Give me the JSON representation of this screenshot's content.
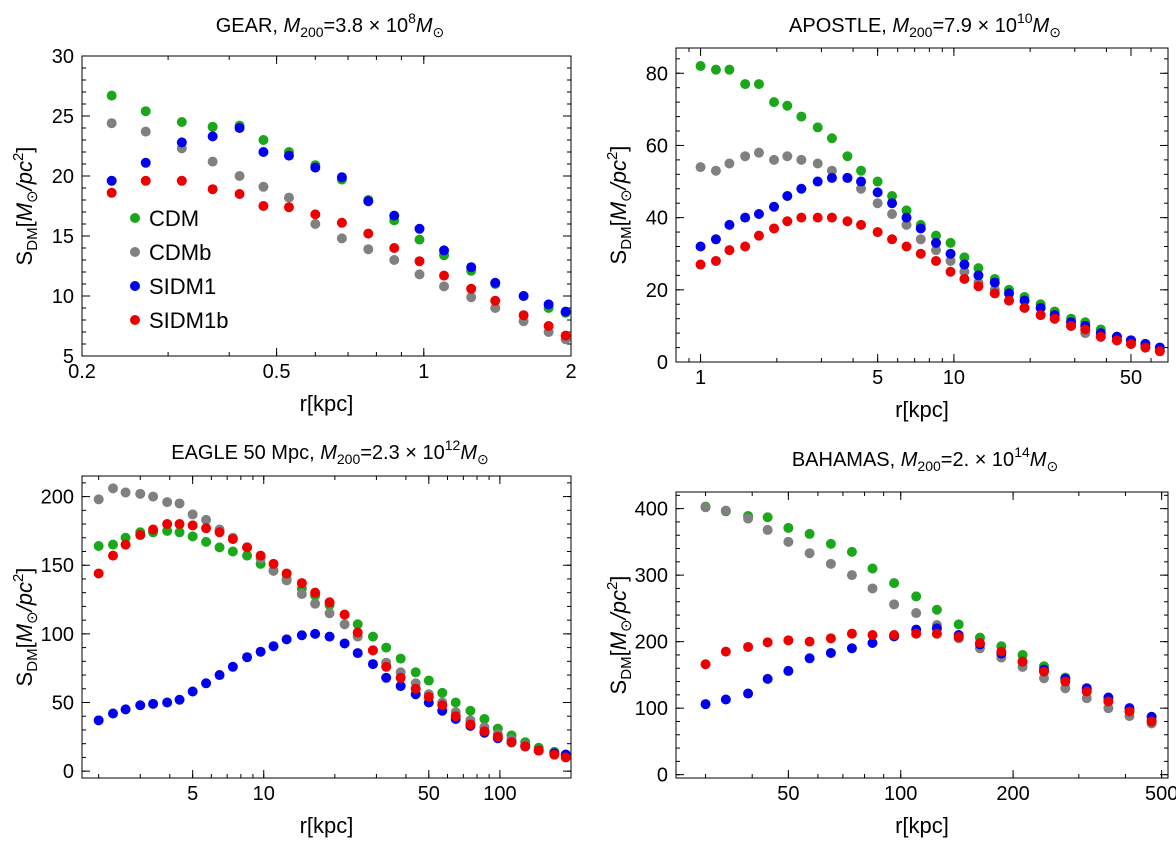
{
  "chart_data": [
    {
      "type": "scatter",
      "title": "GEAR, M200=3.8×10^8 M⊙",
      "title_parts": {
        "prefix": "GEAR, ",
        "sym": "M",
        "sub": "200",
        "mid": "=3.8 × 10",
        "sup": "8",
        "unit_sym": "M",
        "unit_sub": "⊙"
      },
      "xlabel": "r[kpc]",
      "ylabel": "S_DM[M⊙/pc²]",
      "xscale": "log",
      "xlim": [
        0.2,
        2
      ],
      "ylim": [
        5,
        30
      ],
      "xticks": [
        0.2,
        0.5,
        1,
        2
      ],
      "xtick_labels": [
        "0.2",
        "0.5",
        "1",
        "2"
      ],
      "yticks": [
        5,
        10,
        15,
        20,
        25,
        30
      ],
      "ytick_labels": [
        "5",
        "10",
        "15",
        "20",
        "25",
        "30"
      ],
      "legend": "left",
      "series": [
        {
          "name": "CDM",
          "color": "#1aa81a",
          "x": [
            0.23,
            0.27,
            0.32,
            0.37,
            0.42,
            0.47,
            0.53,
            0.6,
            0.68,
            0.77,
            0.87,
            0.98,
            1.1,
            1.25,
            1.4,
            1.6,
            1.8,
            1.95
          ],
          "y": [
            26.7,
            25.4,
            24.5,
            24.1,
            24.2,
            23.0,
            22.0,
            20.9,
            19.7,
            18.0,
            16.3,
            14.7,
            13.4,
            12.1,
            11.0,
            10.0,
            9.0,
            8.6
          ]
        },
        {
          "name": "CDMb",
          "color": "#808080",
          "x": [
            0.23,
            0.27,
            0.32,
            0.37,
            0.42,
            0.47,
            0.53,
            0.6,
            0.68,
            0.77,
            0.87,
            0.98,
            1.1,
            1.25,
            1.4,
            1.6,
            1.8,
            1.95
          ],
          "y": [
            24.4,
            23.7,
            22.3,
            21.2,
            20.0,
            19.1,
            18.2,
            16.0,
            14.8,
            13.9,
            13.0,
            11.8,
            10.8,
            9.9,
            9.0,
            7.9,
            7.0,
            6.4
          ]
        },
        {
          "name": "SIDM1",
          "color": "#0000ee",
          "x": [
            0.23,
            0.27,
            0.32,
            0.37,
            0.42,
            0.47,
            0.53,
            0.6,
            0.68,
            0.77,
            0.87,
            0.98,
            1.1,
            1.25,
            1.4,
            1.6,
            1.8,
            1.95
          ],
          "y": [
            19.6,
            21.1,
            22.8,
            23.3,
            24.0,
            22.0,
            21.7,
            20.7,
            19.9,
            17.9,
            16.7,
            15.6,
            13.8,
            12.4,
            11.1,
            10.0,
            9.3,
            8.7
          ]
        },
        {
          "name": "SIDM1b",
          "color": "#ee0000",
          "x": [
            0.23,
            0.27,
            0.32,
            0.37,
            0.42,
            0.47,
            0.53,
            0.6,
            0.68,
            0.77,
            0.87,
            0.98,
            1.1,
            1.25,
            1.4,
            1.6,
            1.8,
            1.95
          ],
          "y": [
            18.6,
            19.6,
            19.6,
            18.9,
            18.5,
            17.5,
            17.4,
            16.8,
            16.1,
            15.2,
            14.0,
            12.9,
            11.7,
            10.6,
            9.6,
            8.4,
            7.5,
            6.7
          ]
        }
      ]
    },
    {
      "type": "scatter",
      "title": "APOSTLE, M200=7.9×10^10 M⊙",
      "title_parts": {
        "prefix": "APOSTLE, ",
        "sym": "M",
        "sub": "200",
        "mid": "=7.9 × 10",
        "sup": "10",
        "unit_sym": "M",
        "unit_sub": "⊙"
      },
      "xlabel": "r[kpc]",
      "ylabel": "S_DM[M⊙/pc²]",
      "xscale": "log",
      "xlim": [
        0.8,
        70
      ],
      "ylim": [
        0,
        87
      ],
      "xticks": [
        1,
        5,
        10,
        50
      ],
      "xtick_labels": [
        "1",
        "5",
        "10",
        "50"
      ],
      "yticks": [
        0,
        20,
        40,
        60,
        80
      ],
      "ytick_labels": [
        "0",
        "20",
        "40",
        "60",
        "80"
      ],
      "series": [
        {
          "name": "CDM",
          "color": "#1aa81a",
          "x": [
            1.0,
            1.15,
            1.3,
            1.5,
            1.7,
            1.95,
            2.2,
            2.5,
            2.9,
            3.3,
            3.8,
            4.3,
            5.0,
            5.7,
            6.5,
            7.4,
            8.5,
            9.7,
            11,
            12.5,
            14.5,
            16.5,
            19,
            22,
            25,
            29,
            33,
            38,
            44,
            50,
            57,
            65
          ],
          "y": [
            82,
            81,
            81,
            77,
            77,
            72,
            71,
            68,
            65,
            62,
            57,
            53,
            50,
            46,
            42,
            38,
            35,
            33,
            29,
            26,
            23,
            20,
            18,
            16,
            14,
            12,
            11,
            9,
            7,
            6,
            5,
            4
          ]
        },
        {
          "name": "CDMb",
          "color": "#808080",
          "x": [
            1.0,
            1.15,
            1.3,
            1.5,
            1.7,
            1.95,
            2.2,
            2.5,
            2.9,
            3.3,
            3.8,
            4.3,
            5.0,
            5.7,
            6.5,
            7.4,
            8.5,
            9.7,
            11,
            12.5,
            14.5,
            16.5,
            19,
            22,
            25,
            29,
            33,
            38,
            44,
            50,
            57,
            65
          ],
          "y": [
            54,
            53,
            55,
            57,
            58,
            56,
            57,
            56,
            55,
            53,
            51,
            48,
            44,
            41,
            38,
            34,
            31,
            28,
            25,
            22,
            20,
            17,
            15,
            13,
            12,
            10,
            8,
            7,
            6,
            5,
            4,
            3
          ]
        },
        {
          "name": "SIDM1",
          "color": "#0000ee",
          "x": [
            1.0,
            1.15,
            1.3,
            1.5,
            1.7,
            1.95,
            2.2,
            2.5,
            2.9,
            3.3,
            3.8,
            4.3,
            5.0,
            5.7,
            6.5,
            7.4,
            8.5,
            9.7,
            11,
            12.5,
            14.5,
            16.5,
            19,
            22,
            25,
            29,
            33,
            38,
            44,
            50,
            57,
            65
          ],
          "y": [
            32,
            34,
            38,
            40,
            41,
            43,
            46,
            48,
            50,
            51,
            51,
            50,
            47,
            44,
            40,
            37,
            33,
            30,
            27,
            24,
            22,
            19,
            17,
            15,
            13,
            11,
            10,
            8,
            7,
            6,
            5,
            4
          ]
        },
        {
          "name": "SIDM1b",
          "color": "#ee0000",
          "x": [
            1.0,
            1.15,
            1.3,
            1.5,
            1.7,
            1.95,
            2.2,
            2.5,
            2.9,
            3.3,
            3.8,
            4.3,
            5.0,
            5.7,
            6.5,
            7.4,
            8.5,
            9.7,
            11,
            12.5,
            14.5,
            16.5,
            19,
            22,
            25,
            29,
            33,
            38,
            44,
            50,
            57,
            65
          ],
          "y": [
            27,
            28,
            31,
            32,
            35,
            37,
            39,
            40,
            40,
            40,
            39,
            38,
            36,
            34,
            32,
            30,
            28,
            25,
            23,
            21,
            19,
            17,
            15,
            13,
            12,
            10,
            9,
            7,
            6,
            5,
            4,
            3
          ]
        }
      ]
    },
    {
      "type": "scatter",
      "title": "EAGLE 50 Mpc, M200=2.3×10^12 M⊙",
      "title_parts": {
        "prefix": "EAGLE 50 Mpc, ",
        "sym": "M",
        "sub": "200",
        "mid": "=2.3 × 10",
        "sup": "12",
        "unit_sym": "M",
        "unit_sub": "⊙"
      },
      "xlabel": "r[kpc]",
      "ylabel": "S_DM[M⊙/pc²]",
      "xscale": "log",
      "xlim": [
        1.7,
        200
      ],
      "ylim": [
        -5,
        215
      ],
      "xticks": [
        5,
        10,
        50,
        100
      ],
      "xtick_labels": [
        "5",
        "10",
        "50",
        "100"
      ],
      "yticks": [
        0,
        50,
        100,
        150,
        200
      ],
      "ytick_labels": [
        "0",
        "50",
        "100",
        "150",
        "200"
      ],
      "series": [
        {
          "name": "CDM",
          "color": "#1aa81a",
          "x": [
            2.0,
            2.3,
            2.6,
            3.0,
            3.4,
            3.9,
            4.4,
            5.0,
            5.7,
            6.5,
            7.4,
            8.5,
            9.7,
            11,
            12.5,
            14.5,
            16.5,
            19,
            22,
            25,
            29,
            33,
            38,
            44,
            50,
            57,
            65,
            75,
            86,
            98,
            112,
            128,
            146,
            170,
            190
          ],
          "y": [
            164,
            165,
            170,
            174,
            174,
            175,
            174,
            171,
            167,
            163,
            160,
            157,
            151,
            146,
            140,
            133,
            128,
            121,
            114,
            107,
            98,
            90,
            82,
            72,
            66,
            57,
            50,
            44,
            38,
            31,
            26,
            21,
            17,
            14,
            12
          ]
        },
        {
          "name": "CDMb",
          "color": "#808080",
          "x": [
            2.0,
            2.3,
            2.6,
            3.0,
            3.4,
            3.9,
            4.4,
            5.0,
            5.7,
            6.5,
            7.4,
            8.5,
            9.7,
            11,
            12.5,
            14.5,
            16.5,
            19,
            22,
            25,
            29,
            33,
            38,
            44,
            50,
            57,
            65,
            75,
            86,
            98,
            112,
            128,
            146,
            170,
            190
          ],
          "y": [
            198,
            206,
            203,
            202,
            200,
            196,
            195,
            187,
            183,
            176,
            170,
            163,
            155,
            146,
            139,
            129,
            122,
            115,
            107,
            98,
            88,
            79,
            72,
            64,
            56,
            50,
            43,
            37,
            32,
            27,
            23,
            19,
            15,
            13,
            11
          ]
        },
        {
          "name": "SIDM1",
          "color": "#0000ee",
          "x": [
            2.0,
            2.3,
            2.6,
            3.0,
            3.4,
            3.9,
            4.4,
            5.0,
            5.7,
            6.5,
            7.4,
            8.5,
            9.7,
            11,
            12.5,
            14.5,
            16.5,
            19,
            22,
            25,
            29,
            33,
            38,
            44,
            50,
            57,
            65,
            75,
            86,
            98,
            112,
            128,
            146,
            170,
            190
          ],
          "y": [
            37,
            42,
            45,
            48,
            49,
            50,
            52,
            58,
            64,
            70,
            76,
            83,
            87,
            91,
            96,
            99,
            100,
            98,
            93,
            86,
            78,
            68,
            62,
            56,
            50,
            44,
            38,
            33,
            28,
            24,
            21,
            18,
            15,
            13,
            12
          ]
        },
        {
          "name": "SIDM1b",
          "color": "#ee0000",
          "x": [
            2.0,
            2.3,
            2.6,
            3.0,
            3.4,
            3.9,
            4.4,
            5.0,
            5.7,
            6.5,
            7.4,
            8.5,
            9.7,
            11,
            12.5,
            14.5,
            16.5,
            19,
            22,
            25,
            29,
            33,
            38,
            44,
            50,
            57,
            65,
            75,
            86,
            98,
            112,
            128,
            146,
            170,
            190
          ],
          "y": [
            144,
            157,
            165,
            172,
            176,
            180,
            180,
            179,
            177,
            174,
            169,
            163,
            157,
            151,
            144,
            137,
            130,
            123,
            114,
            101,
            88,
            76,
            68,
            60,
            54,
            48,
            40,
            34,
            29,
            25,
            21,
            18,
            15,
            12,
            10
          ]
        }
      ]
    },
    {
      "type": "scatter",
      "title": "BAHAMAS, M200=2.×10^14 M⊙",
      "title_parts": {
        "prefix": "BAHAMAS, ",
        "sym": "M",
        "sub": "200",
        "mid": "=2. × 10",
        "sup": "14",
        "unit_sym": "M",
        "unit_sub": "⊙"
      },
      "xlabel": "r[kpc]",
      "ylabel": "S_DM[M⊙/pc²]",
      "xscale": "log",
      "xlim": [
        25,
        520
      ],
      "ylim": [
        -5,
        425
      ],
      "xticks": [
        50,
        100,
        200,
        500
      ],
      "xtick_labels": [
        "50",
        "100",
        "200",
        "500"
      ],
      "yticks": [
        0,
        100,
        200,
        300,
        400
      ],
      "ytick_labels": [
        "0",
        "100",
        "200",
        "300",
        "400"
      ],
      "series": [
        {
          "name": "CDM",
          "color": "#1aa81a",
          "x": [
            30,
            34,
            39,
            44,
            50,
            57,
            65,
            74,
            84,
            96,
            110,
            125,
            143,
            163,
            186,
            212,
            242,
            276,
            315,
            360,
            410,
            470
          ],
          "y": [
            403,
            396,
            389,
            387,
            371,
            362,
            347,
            335,
            310,
            288,
            268,
            248,
            226,
            206,
            193,
            180,
            163,
            146,
            128,
            111,
            96,
            82
          ]
        },
        {
          "name": "CDMb",
          "color": "#808080",
          "x": [
            30,
            34,
            39,
            44,
            50,
            57,
            65,
            74,
            84,
            96,
            110,
            125,
            143,
            163,
            186,
            212,
            242,
            276,
            315,
            360,
            410,
            470
          ],
          "y": [
            402,
            397,
            385,
            368,
            350,
            333,
            317,
            300,
            280,
            256,
            243,
            225,
            205,
            190,
            176,
            162,
            145,
            130,
            115,
            100,
            88,
            77
          ]
        },
        {
          "name": "SIDM1",
          "color": "#0000ee",
          "x": [
            30,
            34,
            39,
            44,
            50,
            57,
            65,
            74,
            84,
            96,
            110,
            125,
            143,
            163,
            186,
            212,
            242,
            276,
            315,
            360,
            410,
            470
          ],
          "y": [
            106,
            113,
            122,
            144,
            156,
            175,
            183,
            190,
            198,
            208,
            218,
            220,
            210,
            196,
            182,
            170,
            158,
            144,
            130,
            116,
            100,
            87
          ]
        },
        {
          "name": "SIDM1b",
          "color": "#ee0000",
          "x": [
            30,
            34,
            39,
            44,
            50,
            57,
            65,
            74,
            84,
            96,
            110,
            125,
            143,
            163,
            186,
            212,
            242,
            276,
            315,
            360,
            410,
            470
          ],
          "y": [
            166,
            185,
            192,
            199,
            202,
            200,
            205,
            212,
            210,
            210,
            212,
            212,
            207,
            198,
            185,
            170,
            155,
            140,
            125,
            110,
            95,
            80
          ]
        }
      ]
    }
  ]
}
